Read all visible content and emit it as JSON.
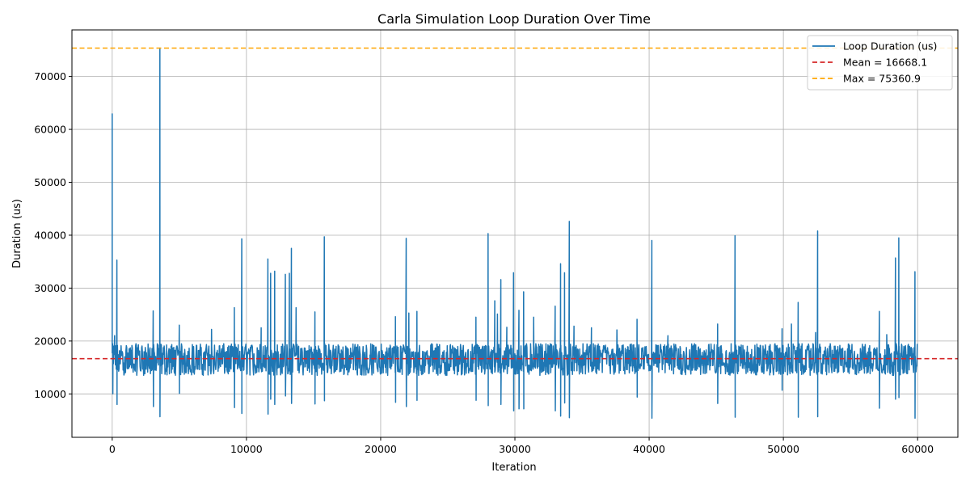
{
  "chart_data": {
    "type": "line",
    "title": "Carla Simulation Loop Duration Over Time",
    "xlabel": "Iteration",
    "ylabel": "Duration (us)",
    "xlim": [
      -3000,
      63000
    ],
    "ylim": [
      1800,
      78800
    ],
    "xticks": [
      0,
      10000,
      20000,
      30000,
      40000,
      50000,
      60000
    ],
    "yticks": [
      10000,
      20000,
      30000,
      40000,
      50000,
      60000,
      70000
    ],
    "grid": true,
    "legend_position": "top-right",
    "series": [
      {
        "name": "Loop Duration (us)",
        "color": "#1f77b4",
        "baseline": {
          "x_range": [
            0,
            60000
          ],
          "typical_low": 13500,
          "typical_high": 19500
        },
        "spikes": [
          {
            "x": 0,
            "y": 63000
          },
          {
            "x": 50,
            "y": 10000
          },
          {
            "x": 180,
            "y": 21000
          },
          {
            "x": 350,
            "y": 35300
          },
          {
            "x": 360,
            "y": 8000
          },
          {
            "x": 3050,
            "y": 25700
          },
          {
            "x": 3070,
            "y": 7600
          },
          {
            "x": 3550,
            "y": 75360.9
          },
          {
            "x": 3560,
            "y": 5700
          },
          {
            "x": 5000,
            "y": 23000
          },
          {
            "x": 5010,
            "y": 10100
          },
          {
            "x": 7400,
            "y": 22200
          },
          {
            "x": 9100,
            "y": 26300
          },
          {
            "x": 9110,
            "y": 7400
          },
          {
            "x": 9650,
            "y": 39300
          },
          {
            "x": 9660,
            "y": 6300
          },
          {
            "x": 11100,
            "y": 22500
          },
          {
            "x": 11600,
            "y": 35500
          },
          {
            "x": 11610,
            "y": 6200
          },
          {
            "x": 11800,
            "y": 32800
          },
          {
            "x": 11810,
            "y": 9000
          },
          {
            "x": 12100,
            "y": 33200
          },
          {
            "x": 12110,
            "y": 8000
          },
          {
            "x": 12900,
            "y": 32600
          },
          {
            "x": 12910,
            "y": 9600
          },
          {
            "x": 13200,
            "y": 32800
          },
          {
            "x": 13350,
            "y": 37500
          },
          {
            "x": 13360,
            "y": 8200
          },
          {
            "x": 13700,
            "y": 26300
          },
          {
            "x": 15100,
            "y": 25500
          },
          {
            "x": 15110,
            "y": 8100
          },
          {
            "x": 15800,
            "y": 39700
          },
          {
            "x": 15810,
            "y": 8700
          },
          {
            "x": 21100,
            "y": 24600
          },
          {
            "x": 21110,
            "y": 8400
          },
          {
            "x": 21900,
            "y": 39400
          },
          {
            "x": 21910,
            "y": 7600
          },
          {
            "x": 22100,
            "y": 25300
          },
          {
            "x": 22700,
            "y": 25600
          },
          {
            "x": 22710,
            "y": 8800
          },
          {
            "x": 27100,
            "y": 24500
          },
          {
            "x": 27110,
            "y": 8800
          },
          {
            "x": 28000,
            "y": 40300
          },
          {
            "x": 28010,
            "y": 7800
          },
          {
            "x": 28500,
            "y": 27600
          },
          {
            "x": 28700,
            "y": 25100
          },
          {
            "x": 28950,
            "y": 31600
          },
          {
            "x": 28960,
            "y": 8000
          },
          {
            "x": 29400,
            "y": 22600
          },
          {
            "x": 29900,
            "y": 32900
          },
          {
            "x": 29910,
            "y": 6800
          },
          {
            "x": 30300,
            "y": 25800
          },
          {
            "x": 30310,
            "y": 7200
          },
          {
            "x": 30650,
            "y": 29300
          },
          {
            "x": 30660,
            "y": 7200
          },
          {
            "x": 31400,
            "y": 24500
          },
          {
            "x": 33000,
            "y": 26600
          },
          {
            "x": 33010,
            "y": 6800
          },
          {
            "x": 33400,
            "y": 34600
          },
          {
            "x": 33410,
            "y": 5800
          },
          {
            "x": 33700,
            "y": 32900
          },
          {
            "x": 33710,
            "y": 8300
          },
          {
            "x": 34050,
            "y": 42600
          },
          {
            "x": 34060,
            "y": 5500
          },
          {
            "x": 34400,
            "y": 22800
          },
          {
            "x": 35700,
            "y": 22500
          },
          {
            "x": 37600,
            "y": 22100
          },
          {
            "x": 39100,
            "y": 24100
          },
          {
            "x": 39110,
            "y": 9400
          },
          {
            "x": 40200,
            "y": 39000
          },
          {
            "x": 40210,
            "y": 5400
          },
          {
            "x": 41400,
            "y": 21000
          },
          {
            "x": 45100,
            "y": 23200
          },
          {
            "x": 45110,
            "y": 8200
          },
          {
            "x": 46400,
            "y": 39900
          },
          {
            "x": 46410,
            "y": 5600
          },
          {
            "x": 49900,
            "y": 22300
          },
          {
            "x": 49910,
            "y": 10700
          },
          {
            "x": 50600,
            "y": 23200
          },
          {
            "x": 51100,
            "y": 27300
          },
          {
            "x": 51110,
            "y": 5600
          },
          {
            "x": 52400,
            "y": 21600
          },
          {
            "x": 52550,
            "y": 40800
          },
          {
            "x": 52560,
            "y": 5700
          },
          {
            "x": 57150,
            "y": 25600
          },
          {
            "x": 57160,
            "y": 7300
          },
          {
            "x": 57700,
            "y": 21200
          },
          {
            "x": 58350,
            "y": 35700
          },
          {
            "x": 58360,
            "y": 9000
          },
          {
            "x": 58600,
            "y": 39500
          },
          {
            "x": 58610,
            "y": 9300
          },
          {
            "x": 59800,
            "y": 33100
          },
          {
            "x": 59810,
            "y": 5400
          }
        ]
      }
    ],
    "reference_lines": [
      {
        "label": "Mean = 16668.1",
        "y": 16668.1,
        "color": "#d62728",
        "style": "dashed"
      },
      {
        "label": "Max = 75360.9",
        "y": 75360.9,
        "color": "#ffa500",
        "style": "dashed"
      }
    ]
  }
}
